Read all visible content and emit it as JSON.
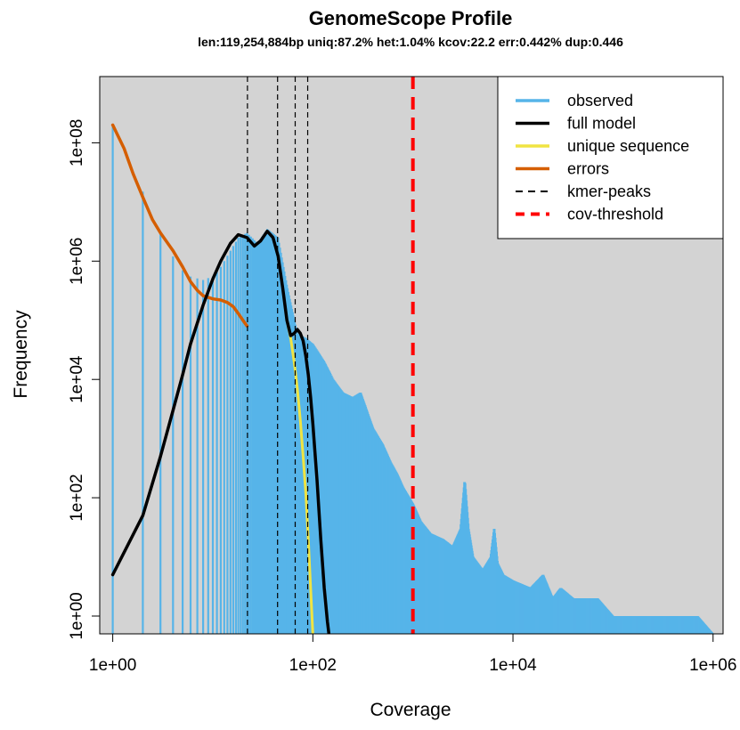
{
  "chart_data": {
    "type": "line",
    "title": "GenomeScope Profile",
    "subtitle": "len:119,254,884bp uniq:87.2% het:1.04% kcov:22.2 err:0.442% dup:0.446",
    "xlabel": "Coverage",
    "ylabel": "Frequency",
    "x_scale": "log",
    "y_scale": "log",
    "xlim": [
      1,
      1000000
    ],
    "ylim": [
      0.5,
      1000000000
    ],
    "x_ticks": [
      {
        "value": 1,
        "label": "1e+00"
      },
      {
        "value": 100,
        "label": "1e+02"
      },
      {
        "value": 10000,
        "label": "1e+04"
      },
      {
        "value": 1000000,
        "label": "1e+06"
      }
    ],
    "y_ticks": [
      {
        "value": 1,
        "label": "1e+00"
      },
      {
        "value": 100,
        "label": "1e+02"
      },
      {
        "value": 10000,
        "label": "1e+04"
      },
      {
        "value": 1000000,
        "label": "1e+06"
      },
      {
        "value": 100000000,
        "label": "1e+08"
      }
    ],
    "background": "#d3d3d3",
    "grid": false,
    "legend_position": "top-right",
    "legend": [
      {
        "label": "observed",
        "color": "#56b4e9",
        "style": "solid"
      },
      {
        "label": "full model",
        "color": "#000000",
        "style": "solid"
      },
      {
        "label": "unique sequence",
        "color": "#f0e442",
        "style": "solid"
      },
      {
        "label": "errors",
        "color": "#d55e00",
        "style": "solid"
      },
      {
        "label": "kmer-peaks",
        "color": "#000000",
        "style": "dashed"
      },
      {
        "label": "cov-threshold",
        "color": "#ff0000",
        "style": "dashed"
      }
    ],
    "series": [
      {
        "name": "observed",
        "color": "#56b4e9",
        "render": "histogram",
        "x": [
          1,
          2,
          3,
          4,
          5,
          6,
          8,
          10,
          12,
          15,
          18,
          22,
          28,
          35,
          45,
          55,
          70,
          85,
          100,
          130,
          160,
          200,
          250,
          300,
          400,
          500,
          600,
          700,
          800,
          1000,
          1200,
          1500,
          2000,
          2500,
          3000,
          3300,
          3600,
          4000,
          5000,
          6000,
          6500,
          7000,
          8000,
          10000,
          15000,
          20000,
          25000,
          30000,
          40000,
          50000,
          60000,
          70000,
          100000,
          200000,
          400000,
          700000,
          1000000
        ],
        "y": [
          200000000,
          15000000,
          3000000,
          1200000,
          700000,
          550000,
          480000,
          550000,
          800000,
          1500000,
          2500000,
          3000000,
          2000000,
          3500000,
          2500000,
          400000,
          60000,
          50000,
          40000,
          20000,
          10000,
          6000,
          5000,
          6000,
          1500,
          800,
          400,
          250,
          150,
          80,
          40,
          25,
          20,
          15,
          30,
          200,
          30,
          10,
          6,
          10,
          30,
          8,
          5,
          4,
          3,
          5,
          2,
          3,
          2,
          2,
          2,
          2,
          1,
          1,
          1,
          1,
          0.5
        ]
      },
      {
        "name": "full model",
        "color": "#000000",
        "x": [
          1,
          2,
          3,
          4,
          5,
          6,
          8,
          10,
          12,
          15,
          18,
          22,
          26,
          30,
          35,
          40,
          45,
          50,
          55,
          60,
          65,
          70,
          75,
          80,
          85,
          90,
          95,
          100,
          110,
          120,
          130,
          140,
          150
        ],
        "y": [
          5,
          50,
          500,
          3000,
          12000,
          40000,
          180000,
          500000,
          1000000,
          2000000,
          2800000,
          2500000,
          1800000,
          2200000,
          3200000,
          2500000,
          1200000,
          350000,
          100000,
          55000,
          60000,
          70000,
          60000,
          45000,
          25000,
          12000,
          5000,
          1800,
          200,
          20,
          3,
          0.8,
          0.3
        ]
      },
      {
        "name": "unique sequence",
        "color": "#f0e442",
        "x": [
          55,
          60,
          65,
          70,
          75,
          80,
          85,
          90,
          95,
          100
        ],
        "y": [
          100000,
          50000,
          20000,
          7000,
          2000,
          500,
          120,
          20,
          3,
          0.5
        ]
      },
      {
        "name": "errors",
        "color": "#d55e00",
        "x": [
          1,
          1.3,
          1.6,
          2,
          2.5,
          3,
          4,
          5,
          6,
          7,
          8,
          10,
          12,
          14,
          16,
          18,
          20,
          22
        ],
        "y": [
          200000000,
          80000000,
          30000000,
          12000000,
          5000000,
          3000000,
          1500000,
          800000,
          450000,
          320000,
          260000,
          230000,
          220000,
          200000,
          170000,
          130000,
          100000,
          80000
        ]
      }
    ],
    "kmer_peaks": [
      22.2,
      44.4,
      66.6,
      88.8
    ],
    "cov_threshold": 1000
  }
}
